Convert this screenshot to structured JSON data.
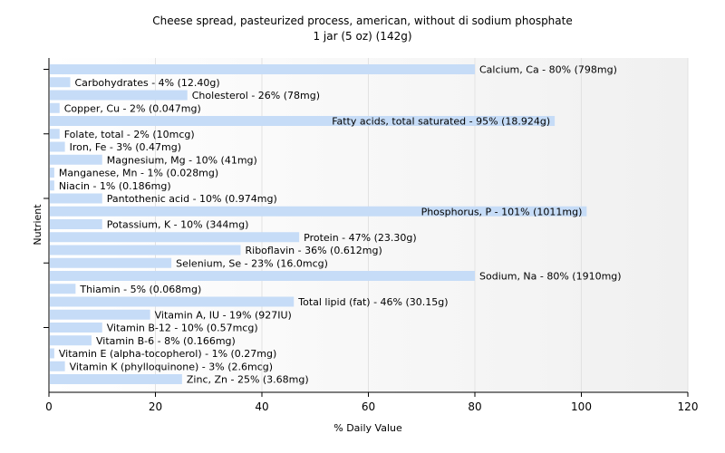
{
  "chart_data": {
    "type": "bar",
    "orientation": "horizontal",
    "title": "Cheese spread, pasteurized process, american, without di sodium phosphate",
    "subtitle": "1 jar (5 oz) (142g)",
    "xlabel": "% Daily Value",
    "ylabel": "Nutrient",
    "xlim": [
      0,
      120
    ],
    "xticks": [
      0,
      20,
      40,
      60,
      80,
      100,
      120
    ],
    "grid": true,
    "bar_color": "#c6dcf7",
    "categories": [
      "Calcium, Ca",
      "Carbohydrates",
      "Cholesterol",
      "Copper, Cu",
      "Fatty acids, total saturated",
      "Folate, total",
      "Iron, Fe",
      "Magnesium, Mg",
      "Manganese, Mn",
      "Niacin",
      "Pantothenic acid",
      "Phosphorus, P",
      "Potassium, K",
      "Protein",
      "Riboflavin",
      "Selenium, Se",
      "Sodium, Na",
      "Thiamin",
      "Total lipid (fat)",
      "Vitamin A, IU",
      "Vitamin B-12",
      "Vitamin B-6",
      "Vitamin E (alpha-tocopherol)",
      "Vitamin K (phylloquinone)",
      "Zinc, Zn"
    ],
    "values": [
      80,
      4,
      26,
      2,
      95,
      2,
      3,
      10,
      1,
      1,
      10,
      101,
      10,
      47,
      36,
      23,
      80,
      5,
      46,
      19,
      10,
      8,
      1,
      3,
      25
    ],
    "labels": [
      "Calcium, Ca - 80% (798mg)",
      "Carbohydrates - 4% (12.40g)",
      "Cholesterol - 26% (78mg)",
      "Copper, Cu - 2% (0.047mg)",
      "Fatty acids, total saturated - 95% (18.924g)",
      "Folate, total - 2% (10mcg)",
      "Iron, Fe - 3% (0.47mg)",
      "Magnesium, Mg - 10% (41mg)",
      "Manganese, Mn - 1% (0.028mg)",
      "Niacin - 1% (0.186mg)",
      "Pantothenic acid - 10% (0.974mg)",
      "Phosphorus, P - 101% (1011mg)",
      "Potassium, K - 10% (344mg)",
      "Protein - 47% (23.30g)",
      "Riboflavin - 36% (0.612mg)",
      "Selenium, Se - 23% (16.0mcg)",
      "Sodium, Na - 80% (1910mg)",
      "Thiamin - 5% (0.068mg)",
      "Total lipid (fat) - 46% (30.15g)",
      "Vitamin A, IU - 19% (927IU)",
      "Vitamin B-12 - 10% (0.57mcg)",
      "Vitamin B-6 - 8% (0.166mg)",
      "Vitamin E (alpha-tocopherol) - 1% (0.27mg)",
      "Vitamin K (phylloquinone) - 3% (2.6mcg)",
      "Zinc, Zn - 25% (3.68mg)"
    ]
  }
}
